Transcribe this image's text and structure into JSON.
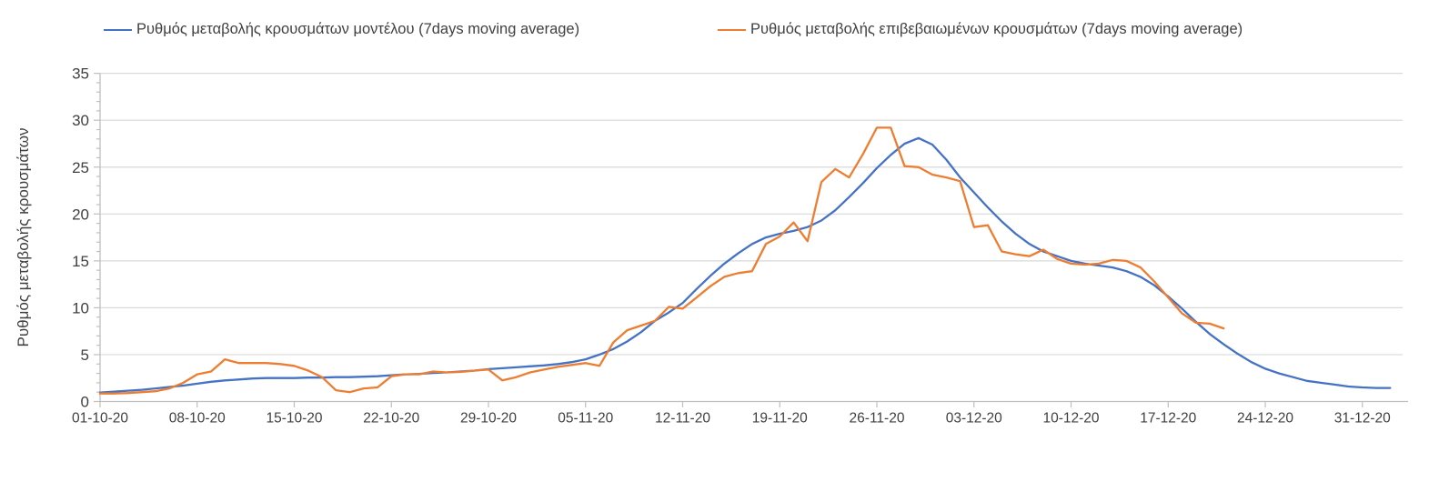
{
  "legend": {
    "items": [
      {
        "label": "Ρυθμός μεταβολής κρουσμάτων μοντέλου (7days moving average)",
        "color": "#4472C4"
      },
      {
        "label": "Ρυθμός μεταβολής επιβεβαιωμένων κρουσμάτων (7days moving average)",
        "color": "#ED7D31"
      }
    ]
  },
  "y_axis": {
    "title": "Ρυθμός μεταβολής κρουσμάτων",
    "min": 0,
    "max": 35,
    "major_step": 5,
    "minor_step": 1,
    "tick_labels": [
      "0",
      "5",
      "10",
      "15",
      "20",
      "25",
      "30",
      "35"
    ]
  },
  "x_axis": {
    "tick_labels": [
      "01-10-20",
      "08-10-20",
      "15-10-20",
      "22-10-20",
      "29-10-20",
      "05-11-20",
      "12-11-20",
      "19-11-20",
      "26-11-20",
      "03-12-20",
      "10-12-20",
      "17-12-20",
      "24-12-20",
      "31-12-20"
    ],
    "tick_days": [
      0,
      7,
      14,
      21,
      28,
      35,
      42,
      49,
      56,
      63,
      70,
      77,
      84,
      91
    ]
  },
  "colors": {
    "gridline": "#D9D9D9",
    "axis": "#BFBFBF",
    "text": "#404040",
    "background": "#FFFFFF"
  },
  "chart_data": {
    "type": "line",
    "title": "",
    "xlabel": "",
    "ylabel": "Ρυθμός μεταβολής κρουσμάτων",
    "ylim": [
      0,
      35
    ],
    "grid": "horizontal",
    "legend_position": "top",
    "x_unit": "days since 01-10-20, daily points",
    "x_tick_dates": [
      "01-10-20",
      "08-10-20",
      "15-10-20",
      "22-10-20",
      "29-10-20",
      "05-11-20",
      "12-11-20",
      "19-11-20",
      "26-11-20",
      "03-12-20",
      "10-12-20",
      "17-12-20",
      "24-12-20",
      "31-12-20"
    ],
    "series": [
      {
        "name": "Ρυθμός μεταβολής κρουσμάτων μοντέλου (7days moving average)",
        "color": "#4472C4",
        "start_day": 0,
        "values": [
          0.95,
          1.05,
          1.15,
          1.25,
          1.4,
          1.55,
          1.7,
          1.9,
          2.1,
          2.25,
          2.35,
          2.45,
          2.5,
          2.5,
          2.5,
          2.55,
          2.55,
          2.6,
          2.6,
          2.65,
          2.7,
          2.8,
          2.9,
          2.95,
          3.05,
          3.1,
          3.2,
          3.3,
          3.45,
          3.55,
          3.65,
          3.75,
          3.85,
          4.0,
          4.2,
          4.5,
          5.0,
          5.6,
          6.4,
          7.4,
          8.6,
          9.5,
          10.5,
          12.0,
          13.4,
          14.7,
          15.8,
          16.8,
          17.5,
          17.9,
          18.2,
          18.6,
          19.3,
          20.4,
          21.8,
          23.3,
          24.9,
          26.3,
          27.5,
          28.1,
          27.4,
          25.8,
          23.9,
          22.3,
          20.7,
          19.2,
          17.9,
          16.8,
          16.0,
          15.5,
          15.0,
          14.7,
          14.5,
          14.3,
          13.9,
          13.3,
          12.4,
          11.2,
          9.9,
          8.5,
          7.2,
          6.1,
          5.1,
          4.2,
          3.5,
          3.0,
          2.6,
          2.2,
          2.0,
          1.8,
          1.6,
          1.5,
          1.45,
          1.45
        ]
      },
      {
        "name": "Ρυθμός μεταβολής επιβεβαιωμένων κρουσμάτων (7days moving average)",
        "color": "#ED7D31",
        "start_day": 0,
        "values": [
          0.85,
          0.85,
          0.9,
          1.0,
          1.1,
          1.4,
          2.0,
          2.9,
          3.2,
          4.5,
          4.1,
          4.1,
          4.1,
          4.0,
          3.8,
          3.3,
          2.6,
          1.2,
          1.0,
          1.4,
          1.5,
          2.7,
          2.9,
          2.9,
          3.2,
          3.1,
          3.15,
          3.3,
          3.4,
          2.25,
          2.6,
          3.1,
          3.4,
          3.7,
          3.9,
          4.1,
          3.8,
          6.3,
          7.6,
          8.1,
          8.6,
          10.1,
          9.9,
          11.1,
          12.3,
          13.3,
          13.7,
          13.9,
          16.8,
          17.6,
          19.1,
          17.1,
          23.4,
          24.8,
          23.9,
          26.4,
          29.2,
          29.2,
          25.1,
          25.0,
          24.2,
          23.9,
          23.5,
          18.6,
          18.8,
          16.0,
          15.7,
          15.5,
          16.2,
          15.2,
          14.7,
          14.6,
          14.7,
          15.1,
          15.0,
          14.3,
          12.8,
          11.1,
          9.4,
          8.4,
          8.3,
          7.8
        ]
      }
    ]
  }
}
